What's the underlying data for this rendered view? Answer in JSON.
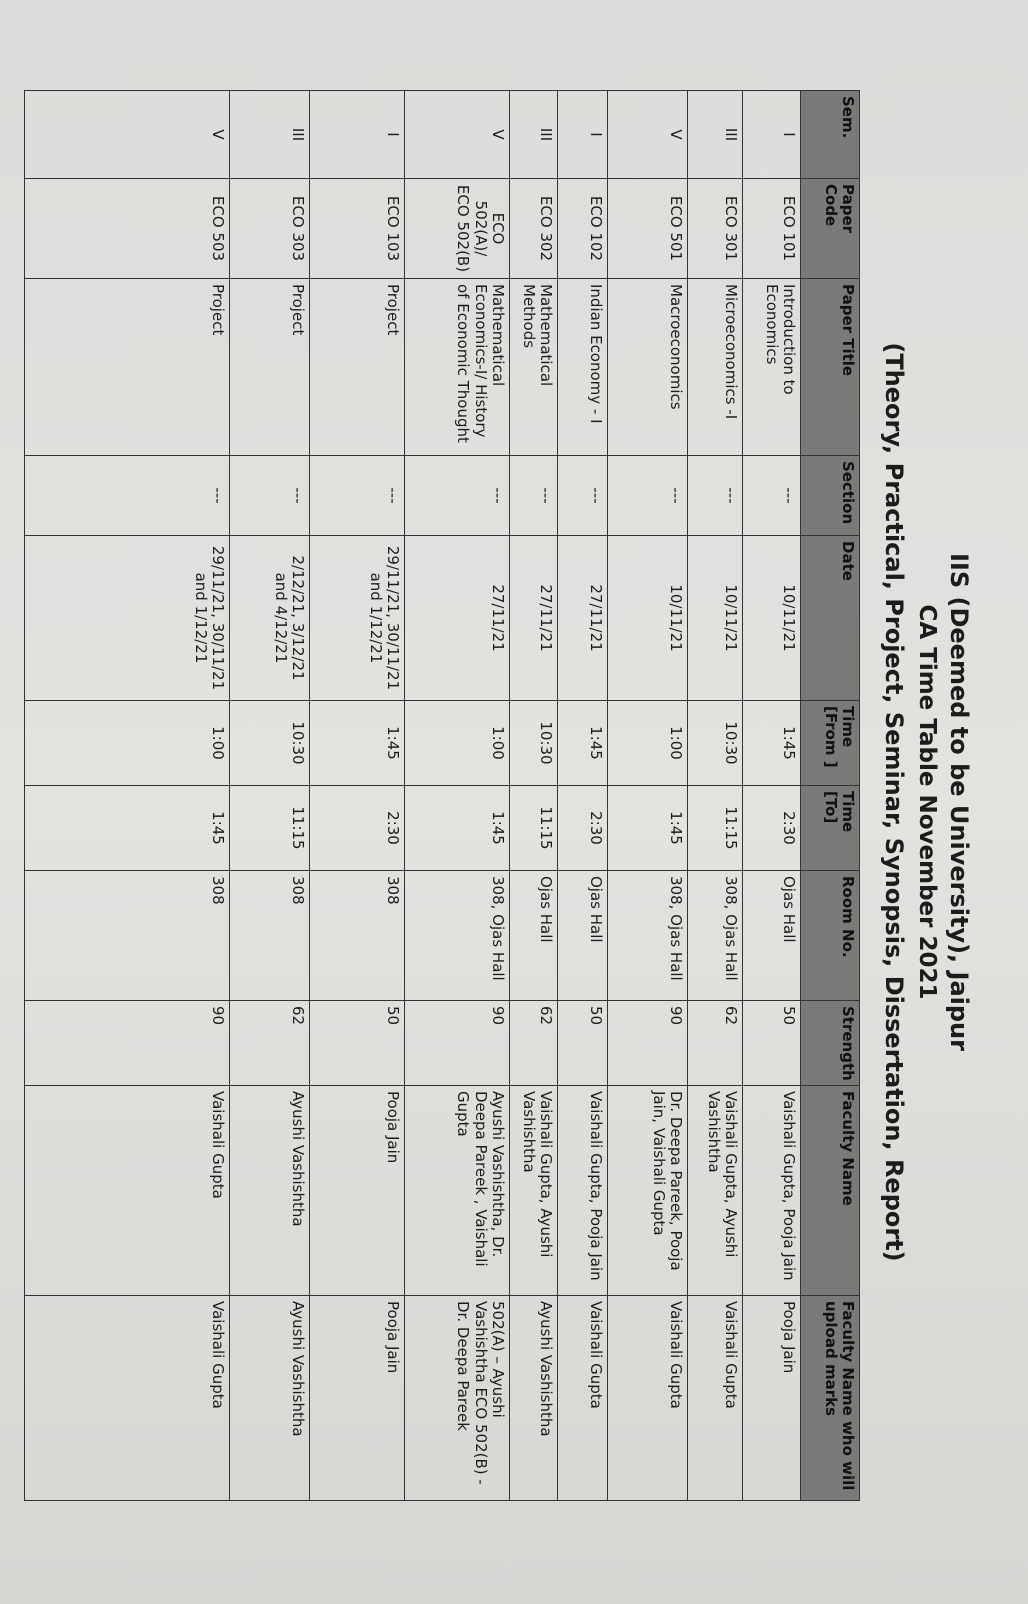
{
  "title": "IIS (Deemed to be University), Jaipur",
  "subtitle": "CA Time Table November 2021",
  "subtitle2": "(Theory, Practical, Project, Seminar, Synopsis, Dissertation, Report)",
  "headers": [
    "Sem.",
    "Paper Code",
    "Paper Title",
    "Section",
    "Date",
    "Time [From ]",
    "Time [To]",
    "Room No.",
    "Strength",
    "Faculty Name",
    "Faculty Name who will upload marks"
  ],
  "rows": [
    [
      "I",
      "ECO 101",
      "Introduction to Economics",
      "---",
      "10/11/21",
      "1:45",
      "2:30",
      "Ojas Hall",
      "50",
      "Vaishali Gupta, Pooja Jain",
      "Pooja Jain"
    ],
    [
      "III",
      "ECO 301",
      "Microeconomics -I",
      "---",
      "10/11/21",
      "10:30",
      "11:15",
      "308, Ojas Hall",
      "62",
      "Vaishali Gupta, Ayushi Vashishtha",
      "Vaishali Gupta"
    ],
    [
      "V",
      "ECO 501",
      "Macroeconomics",
      "---",
      "10/11/21",
      "1:00",
      "1:45",
      "308, Ojas Hall",
      "90",
      "Dr. Deepa Pareek, Pooja Jain, Vaishali Gupta",
      "Vaishali Gupta"
    ],
    [
      "I",
      "ECO 102",
      "Indian Economy - I",
      "---",
      "27/11/21",
      "1:45",
      "2:30",
      "Ojas Hall",
      "50",
      "Vaishali Gupta, Pooja Jain",
      "Vaishali Gupta"
    ],
    [
      "III",
      "ECO 302",
      "Mathematical Methods",
      "---",
      "27/11/21",
      "10:30",
      "11:15",
      "Ojas Hall",
      "62",
      "Vaishali Gupta, Ayushi Vashishtha",
      "Ayushi Vashishtha"
    ],
    [
      "V",
      "ECO 502(A)/ ECO 502(B)",
      "Mathematical Economics-I/ History of Economic Thought",
      "---",
      "27/11/21",
      "1:00",
      "1:45",
      "308, Ojas Hall",
      "90",
      "Ayushi Vashishtha, Dr. Deepa Pareek , Vaishali Gupta",
      "502(A) – Ayushi Vashishtha ECO 502(B) - Dr. Deepa Pareek"
    ],
    [
      "I",
      "ECO 103",
      "Project",
      "---",
      "29/11/21, 30/11/21 and 1/12/21",
      "1:45",
      "2:30",
      "308",
      "50",
      "Pooja Jain",
      "Pooja Jain"
    ],
    [
      "III",
      "ECO 303",
      "Project",
      "---",
      "2/12/21, 3/12/21 and 4/12/21",
      "10:30",
      "11:15",
      "308",
      "62",
      "Ayushi Vashishtha",
      "Ayushi Vashishtha"
    ],
    [
      "V",
      "ECO 503",
      "Project",
      "---",
      "29/11/21, 30/11/21 and 1/12/21",
      "1:00",
      "1:45",
      "308",
      "90",
      "Vaishali Gupta",
      "Vaishali Gupta"
    ]
  ]
}
